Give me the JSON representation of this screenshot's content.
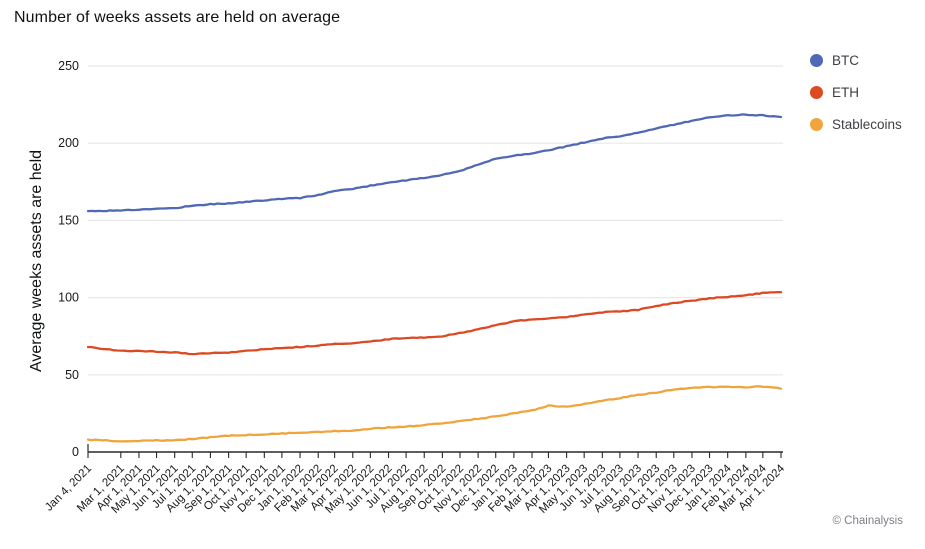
{
  "chart_data": {
    "type": "line",
    "title": "Number of weeks assets are held on average",
    "ylabel": "Average weeks assets are held",
    "xlabel": "",
    "watermark": "© Chainalysis",
    "ylim": [
      0,
      250
    ],
    "y_ticks": [
      0,
      50,
      100,
      150,
      200,
      250
    ],
    "grid": true,
    "legend_position": "top-right",
    "categories": [
      "Jan 4, 2021",
      "Mar 1, 2021",
      "Apr 1, 2021",
      "May 1, 2021",
      "Jun 1, 2021",
      "Jul 1, 2021",
      "Aug 1, 2021",
      "Sep 1, 2021",
      "Oct 1, 2021",
      "Nov 1, 2021",
      "Dec 1, 2021",
      "Jan 1, 2022",
      "Feb 1, 2022",
      "Mar 1, 2022",
      "Apr 1, 2022",
      "May 1, 2022",
      "Jun 1, 2022",
      "Jul 1, 2022",
      "Aug 1, 2022",
      "Sep 1, 2022",
      "Oct 1, 2022",
      "Nov 1, 2022",
      "Dec 1, 2022",
      "Jan 1, 2023",
      "Feb 1, 2023",
      "Mar 1, 2023",
      "Apr 1, 2023",
      "May 1, 2023",
      "Jun 1, 2023",
      "Jul 1, 2023",
      "Aug 1, 2023",
      "Sep 1, 2023",
      "Oct 1, 2023",
      "Nov 1, 2023",
      "Dec 1, 2023",
      "Jan 1, 2024",
      "Feb 1, 2024",
      "Mar 1, 2024",
      "Apr 1, 2024"
    ],
    "series": [
      {
        "name": "BTC",
        "color": "#5168b4",
        "values": [
          156,
          156.5,
          157,
          157.5,
          158,
          159.5,
          160.5,
          161,
          162,
          163,
          164,
          164.5,
          166.5,
          169,
          170.5,
          172.5,
          174.5,
          176,
          177.5,
          179.5,
          182,
          186,
          190,
          192,
          193.5,
          195.5,
          198,
          200.5,
          203,
          204.5,
          207,
          209.5,
          212,
          214.5,
          217,
          218,
          218.5,
          218,
          217
        ]
      },
      {
        "name": "ETH",
        "color": "#dc4a24",
        "values": [
          68,
          65.5,
          65.5,
          65,
          64.5,
          63.5,
          64,
          64.5,
          65.5,
          66.5,
          67.5,
          68,
          69,
          70,
          70.5,
          71.5,
          73,
          74,
          74,
          75,
          77,
          79.5,
          82,
          84.5,
          86,
          86.5,
          87.5,
          89,
          90.5,
          91,
          92,
          94.5,
          96.5,
          98,
          99.5,
          100.5,
          101.5,
          103,
          103.5
        ]
      },
      {
        "name": "Stablecoins",
        "color": "#efa43c",
        "values": [
          8,
          7,
          7.2,
          7.5,
          7.5,
          8.5,
          9.5,
          10.5,
          11,
          11.5,
          12,
          12.5,
          13,
          13.5,
          14,
          15,
          16,
          16.5,
          17.5,
          18.5,
          20,
          21.5,
          23,
          25,
          27,
          30,
          29.5,
          31,
          33,
          35,
          37,
          38.5,
          40.5,
          41.5,
          42,
          42.3,
          42,
          42.5,
          41
        ]
      }
    ]
  }
}
